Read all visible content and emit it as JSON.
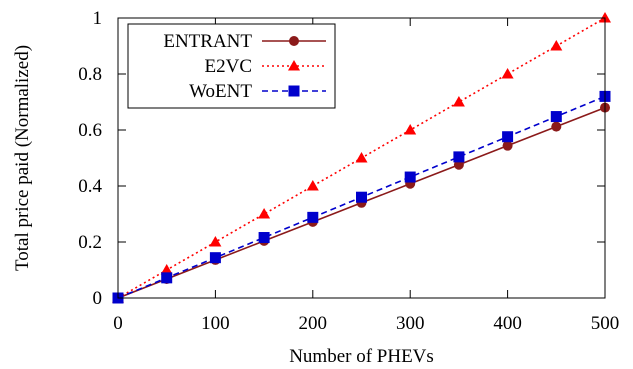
{
  "chart_data": {
    "type": "line",
    "title": "",
    "xlabel": "Number of PHEVs",
    "ylabel": "Total price paid (Normalized)",
    "xlim": [
      0,
      500
    ],
    "ylim": [
      0,
      1
    ],
    "x_ticks": [
      "0",
      "100",
      "200",
      "300",
      "400",
      "500"
    ],
    "y_ticks": [
      "0",
      "0.2",
      "0.4",
      "0.6",
      "0.8",
      "1"
    ],
    "grid": false,
    "legend_position": "top-left",
    "x": [
      0,
      50,
      100,
      150,
      200,
      250,
      300,
      350,
      400,
      450,
      500
    ],
    "series": [
      {
        "name": "ENTRANT",
        "color": "#8b1a1a",
        "line_style": "solid",
        "marker": "circle",
        "values": [
          0,
          0.068,
          0.136,
          0.204,
          0.272,
          0.34,
          0.408,
          0.476,
          0.544,
          0.612,
          0.68
        ]
      },
      {
        "name": "E2VC",
        "color": "#ff0000",
        "line_style": "dotted",
        "marker": "triangle",
        "values": [
          0,
          0.1,
          0.2,
          0.3,
          0.4,
          0.5,
          0.6,
          0.7,
          0.8,
          0.9,
          1.0
        ]
      },
      {
        "name": "WoENT",
        "color": "#0000cc",
        "line_style": "dashed",
        "marker": "square",
        "values": [
          0,
          0.072,
          0.144,
          0.216,
          0.288,
          0.36,
          0.432,
          0.504,
          0.576,
          0.648,
          0.72
        ]
      }
    ]
  }
}
